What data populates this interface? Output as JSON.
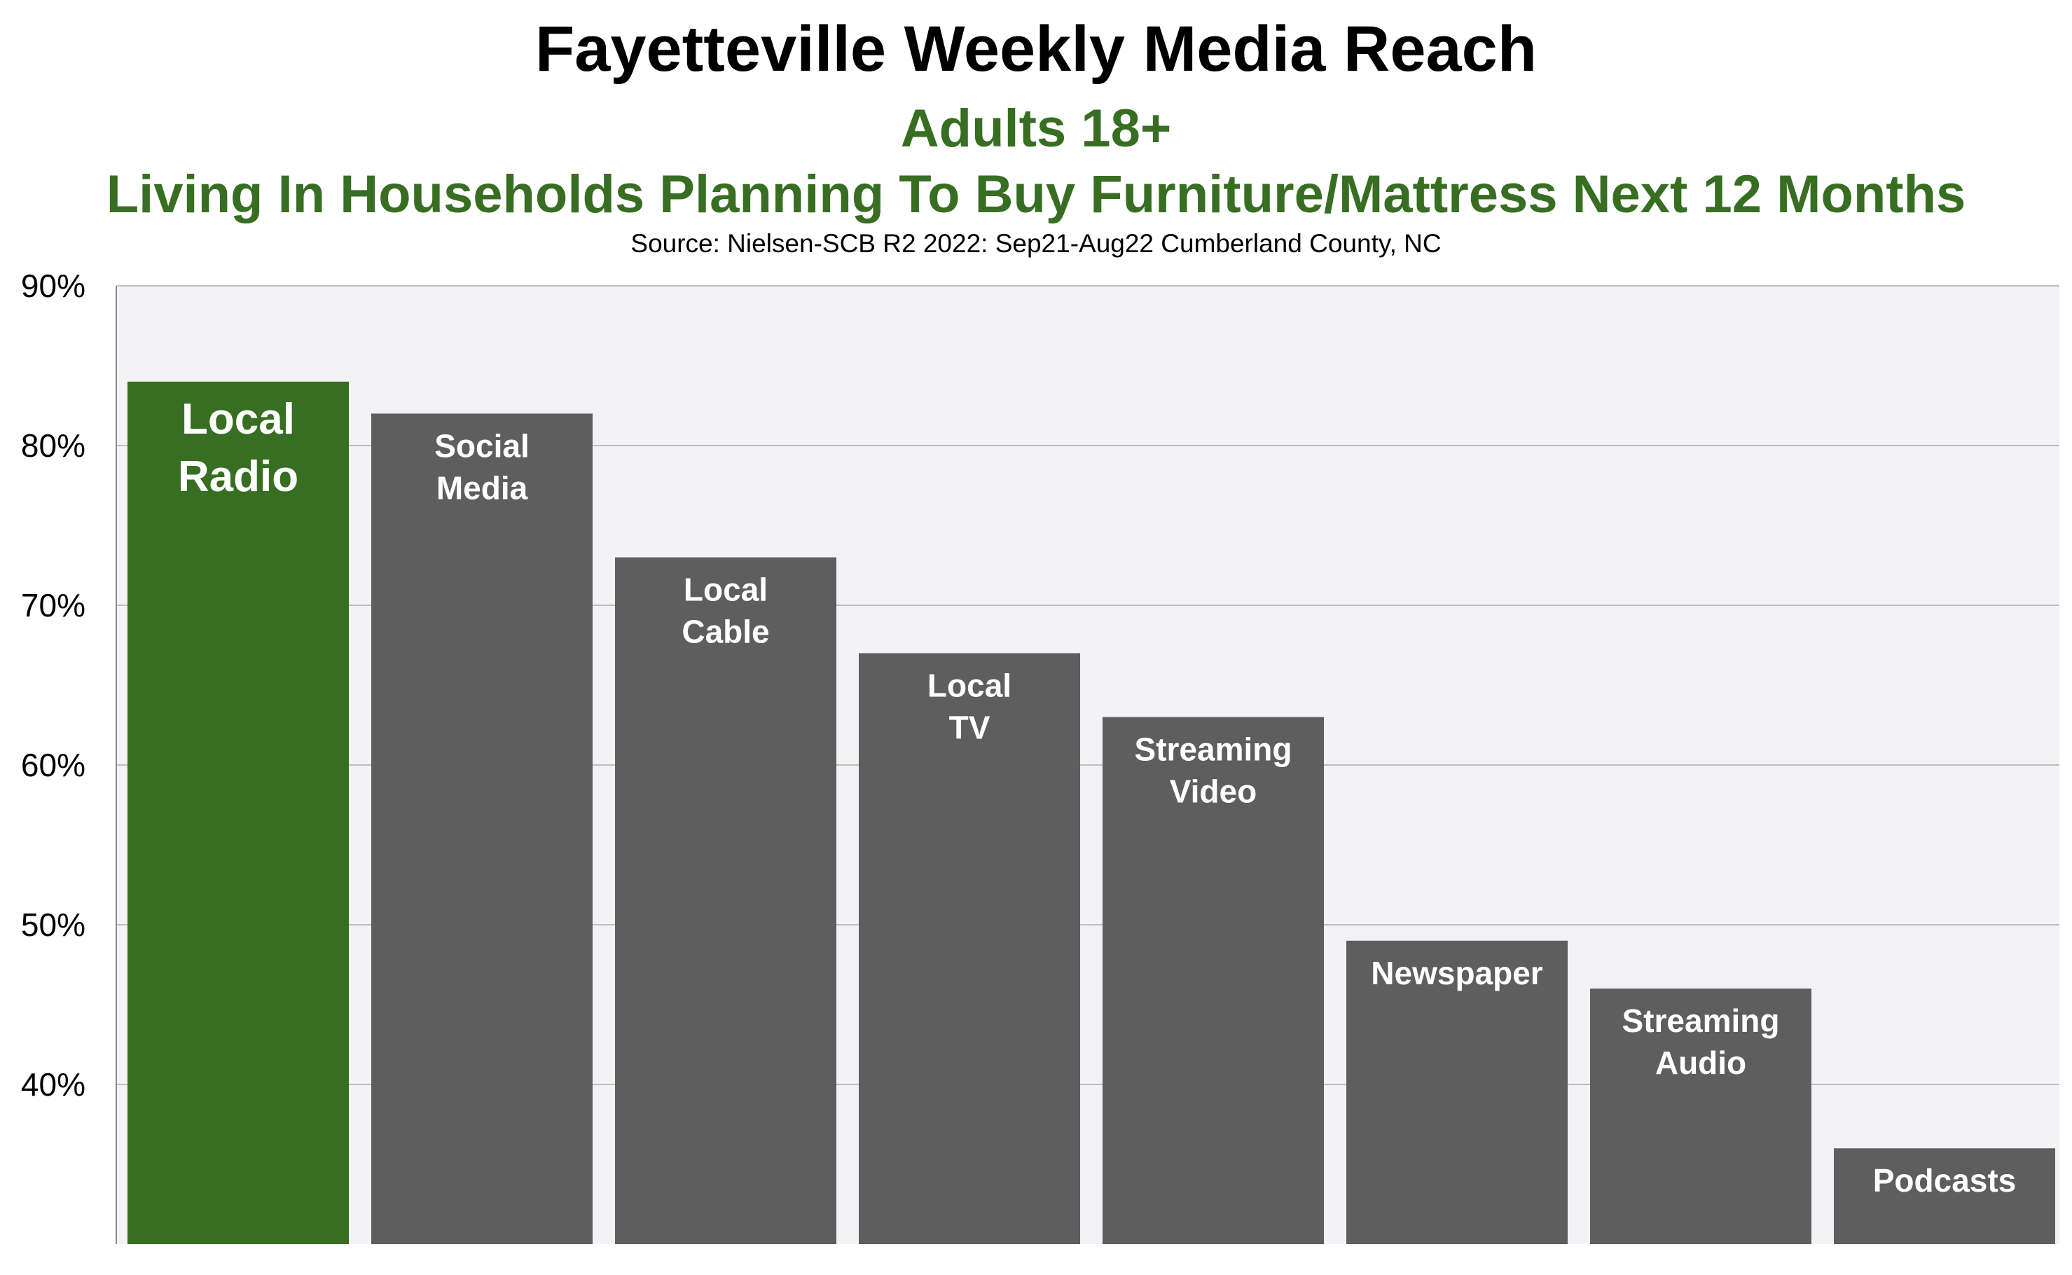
{
  "chart_data": {
    "type": "bar",
    "title": "Fayetteville Weekly Media Reach",
    "subtitle_lines": [
      "Adults 18+",
      "Living In Households Planning To Buy Furniture/Mattress Next 12 Months"
    ],
    "source": "Source: Nielsen-SCB R2 2022:  Sep21-Aug22 Cumberland County, NC",
    "categories": [
      [
        "Local",
        "Radio"
      ],
      [
        "Social",
        "Media"
      ],
      [
        "Local",
        "Cable"
      ],
      [
        "Local",
        "TV"
      ],
      [
        "Streaming",
        "Video"
      ],
      [
        "Newspaper"
      ],
      [
        "Streaming",
        "Audio"
      ],
      [
        "Podcasts"
      ]
    ],
    "values": [
      84,
      82,
      73,
      67,
      63,
      49,
      46,
      36
    ],
    "highlight_index": 0,
    "ylim": [
      30,
      90
    ],
    "yticks": [
      40,
      50,
      60,
      70,
      80,
      90
    ],
    "ytick_labels": [
      "40%",
      "50%",
      "60%",
      "70%",
      "80%",
      "90%"
    ],
    "xlabel": "",
    "ylabel": "",
    "grid": true,
    "colors": {
      "highlight": "#376e22",
      "bar": "#5e5e5e",
      "plot_bg": "#f3f2f5",
      "gridline": "#bdbdbd",
      "subtitle": "#376e22"
    }
  }
}
